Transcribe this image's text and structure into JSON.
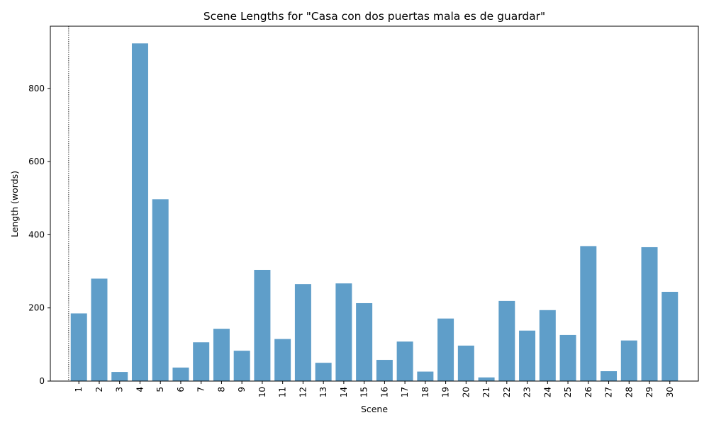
{
  "chart_data": {
    "type": "bar",
    "title": "Scene Lengths for \"Casa con dos puertas mala es de guardar\"",
    "xlabel": "Scene",
    "ylabel": "Length (words)",
    "ylim": [
      0,
      970
    ],
    "yticks": [
      0,
      200,
      400,
      600,
      800
    ],
    "categories": [
      "1",
      "2",
      "3",
      "4",
      "5",
      "6",
      "7",
      "8",
      "9",
      "10",
      "11",
      "12",
      "13",
      "14",
      "15",
      "16",
      "17",
      "18",
      "19",
      "20",
      "21",
      "22",
      "23",
      "24",
      "25",
      "26",
      "27",
      "28",
      "29",
      "30"
    ],
    "values": [
      185,
      280,
      25,
      923,
      497,
      37,
      106,
      143,
      83,
      304,
      115,
      265,
      50,
      267,
      213,
      58,
      108,
      26,
      171,
      97,
      10,
      219,
      138,
      194,
      126,
      369,
      27,
      111,
      366,
      244
    ],
    "bar_color": "#5f9ec9",
    "reference_line": {
      "x_category_offset": -0.5,
      "style": "dotted",
      "color": "#000000"
    },
    "grid": false,
    "legend": "none"
  }
}
